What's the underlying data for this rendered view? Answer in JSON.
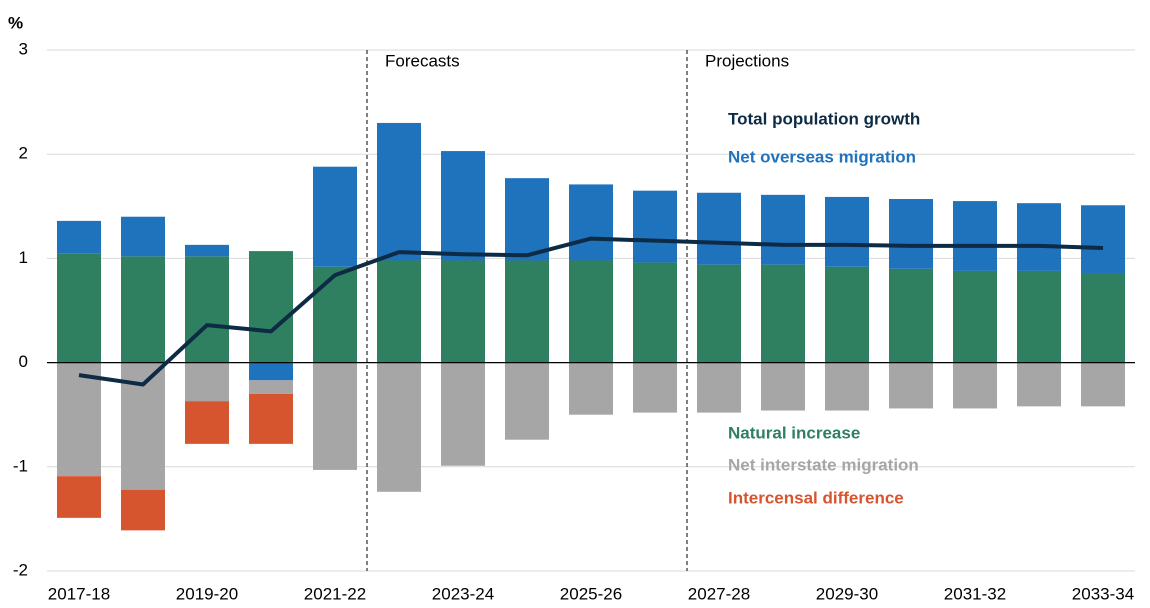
{
  "chart_data": {
    "type": "bar",
    "y_label": "%",
    "annotations": [
      "Forecasts",
      "Projections"
    ],
    "categories": [
      "2017-18",
      null,
      "2019-20",
      null,
      "2021-22",
      null,
      "2023-24",
      null,
      "2025-26",
      null,
      "2027-28",
      null,
      "2029-30",
      null,
      "2031-32",
      null,
      "2033-34"
    ],
    "series": [
      {
        "name": "Total population growth",
        "color": "#0d2b45",
        "chart_type": "line",
        "values": [
          -0.12,
          -0.21,
          0.36,
          0.3,
          0.84,
          1.06,
          1.04,
          1.03,
          1.19,
          1.17,
          1.15,
          1.13,
          1.13,
          1.12,
          1.12,
          1.12,
          1.1
        ]
      },
      {
        "name": "Net overseas migration",
        "color": "#1f72bc",
        "chart_type": "bar",
        "values": [
          0.31,
          0.38,
          0.11,
          -0.17,
          0.96,
          1.32,
          1.05,
          0.79,
          0.73,
          0.69,
          0.69,
          0.67,
          0.67,
          0.67,
          0.67,
          0.65,
          0.65
        ]
      },
      {
        "name": "Natural increase",
        "color": "#2e8060",
        "chart_type": "bar",
        "values": [
          1.05,
          1.02,
          1.02,
          1.07,
          0.92,
          0.98,
          0.98,
          0.98,
          0.98,
          0.96,
          0.94,
          0.94,
          0.92,
          0.9,
          0.88,
          0.88,
          0.86
        ]
      },
      {
        "name": "Net interstate migration",
        "color": "#a6a6a6",
        "chart_type": "bar",
        "values": [
          -1.09,
          -1.22,
          -0.37,
          -0.13,
          -1.03,
          -1.24,
          -0.99,
          -0.74,
          -0.5,
          -0.48,
          -0.48,
          -0.46,
          -0.46,
          -0.44,
          -0.44,
          -0.42,
          -0.42
        ]
      },
      {
        "name": "Intercensal difference",
        "color": "#d6552f",
        "chart_type": "bar",
        "values": [
          -0.4,
          -0.39,
          -0.41,
          -0.48,
          null,
          null,
          null,
          null,
          null,
          null,
          null,
          null,
          null,
          null,
          null,
          null,
          null
        ]
      }
    ],
    "ylim": [
      -2,
      3
    ],
    "yticks": [
      -2,
      -1,
      0,
      1,
      2,
      3
    ],
    "grid": true
  }
}
